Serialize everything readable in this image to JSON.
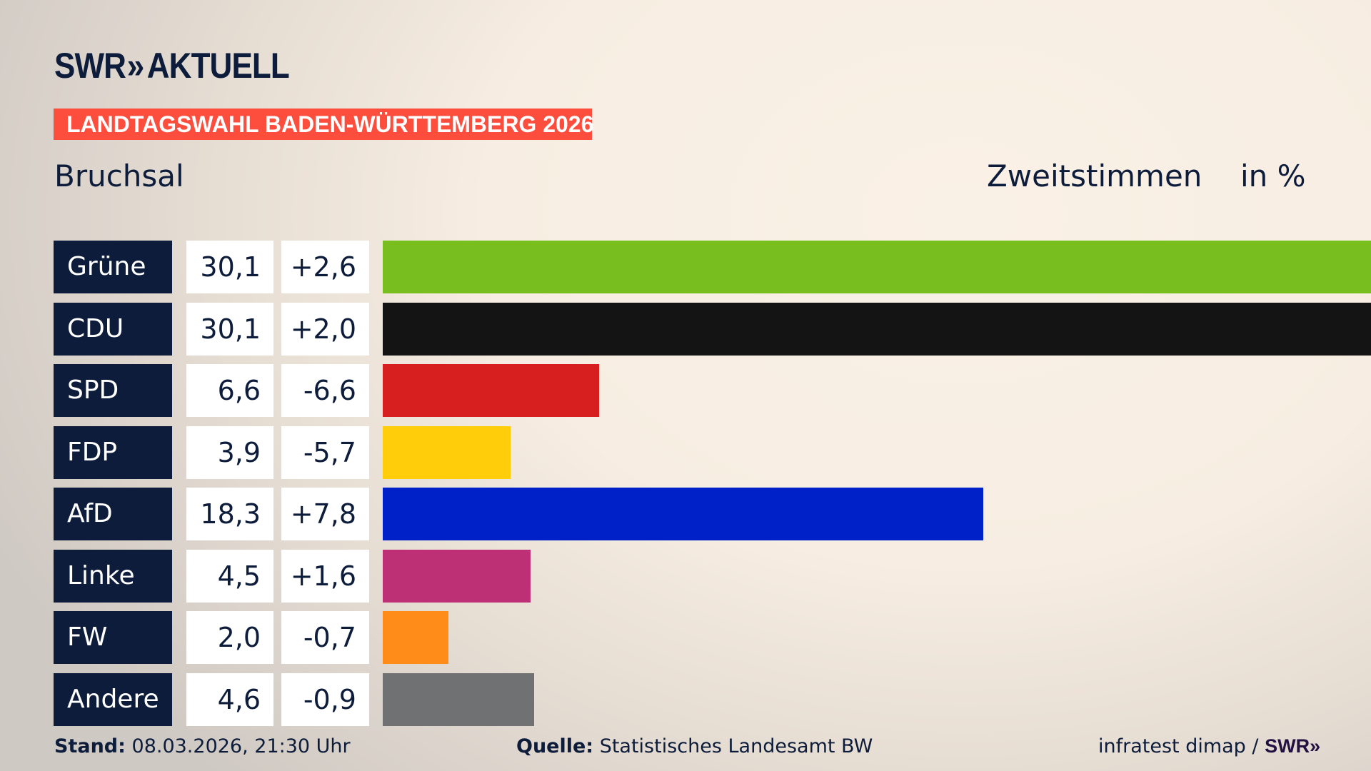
{
  "header": {
    "logo_text": "SWR",
    "logo_chevrons": "»",
    "logo_suffix": "AKTUELL",
    "banner": "LANDTAGSWAHL BADEN-WÜRTTEMBERG 2026"
  },
  "chart_data": {
    "type": "bar",
    "title": "Bruchsal",
    "subtitle": "Zweitstimmen",
    "unit": "in %",
    "orientation": "horizontal",
    "categories": [
      "Grüne",
      "CDU",
      "SPD",
      "FDP",
      "AfD",
      "Linke",
      "FW",
      "Andere"
    ],
    "values": [
      30.1,
      30.1,
      6.6,
      3.9,
      18.3,
      4.5,
      2.0,
      4.6
    ],
    "value_labels": [
      "30,1",
      "30,1",
      "6,6",
      "3,9",
      "18,3",
      "4,5",
      "2,0",
      "4,6"
    ],
    "diff_labels": [
      "+2,6",
      "+2,0",
      "-6,6",
      "-5,7",
      "+7,8",
      "+1,6",
      "-0,7",
      "-0,9"
    ],
    "colors": [
      "#78be1e",
      "#141414",
      "#d71f1f",
      "#ffcd0a",
      "#0021c8",
      "#be3075",
      "#ff8c19",
      "#707173"
    ],
    "xlim": [
      0,
      30.1
    ]
  },
  "footer": {
    "stand_label": "Stand:",
    "stand_value": "08.03.2026, 21:30 Uhr",
    "quelle_label": "Quelle:",
    "quelle_value": "Statistisches Landesamt BW",
    "credit": "infratest dimap /",
    "credit_logo": "SWR»"
  }
}
